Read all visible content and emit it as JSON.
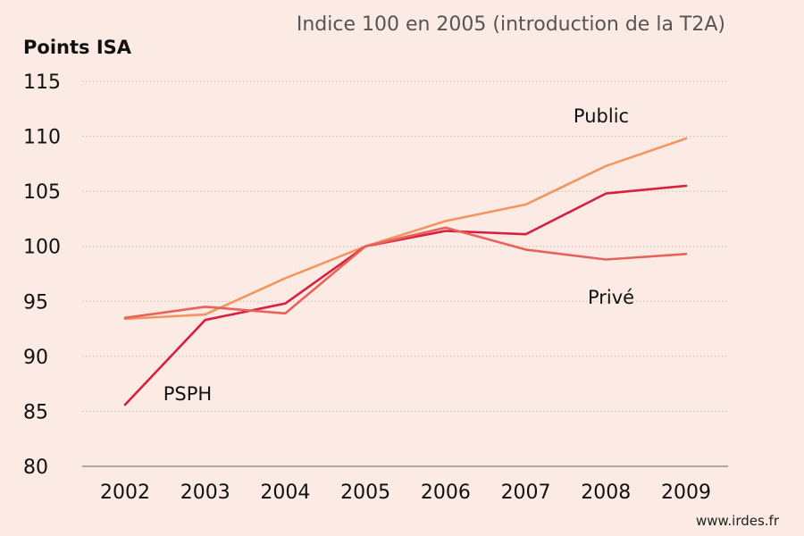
{
  "chart_data": {
    "type": "line",
    "subtitle": "Indice 100 en 2005 (introduction de la T2A)",
    "ylabel": "Points ISA",
    "xlabel": "",
    "x": [
      "2002",
      "2003",
      "2004",
      "2005",
      "2006",
      "2007",
      "2008",
      "2009"
    ],
    "y_ticks": [
      "80",
      "85",
      "90",
      "95",
      "100",
      "105",
      "110",
      "115"
    ],
    "ylim": [
      80,
      115
    ],
    "grid": "horizontal dotted",
    "legend": "inline labels",
    "series": [
      {
        "name": "Public",
        "color": "#f0965e",
        "values": [
          93.4,
          93.8,
          97.1,
          100.0,
          102.3,
          103.8,
          107.3,
          109.8
        ]
      },
      {
        "name": "PSPH",
        "color": "#d91f3f",
        "values": [
          85.6,
          93.3,
          94.8,
          100.0,
          101.4,
          101.1,
          104.8,
          105.5
        ]
      },
      {
        "name": "Privé",
        "color": "#e8625c",
        "values": [
          93.5,
          94.5,
          93.9,
          100.0,
          101.7,
          99.7,
          98.8,
          99.3
        ]
      }
    ]
  },
  "footer": {
    "source": "www.irdes.fr"
  }
}
